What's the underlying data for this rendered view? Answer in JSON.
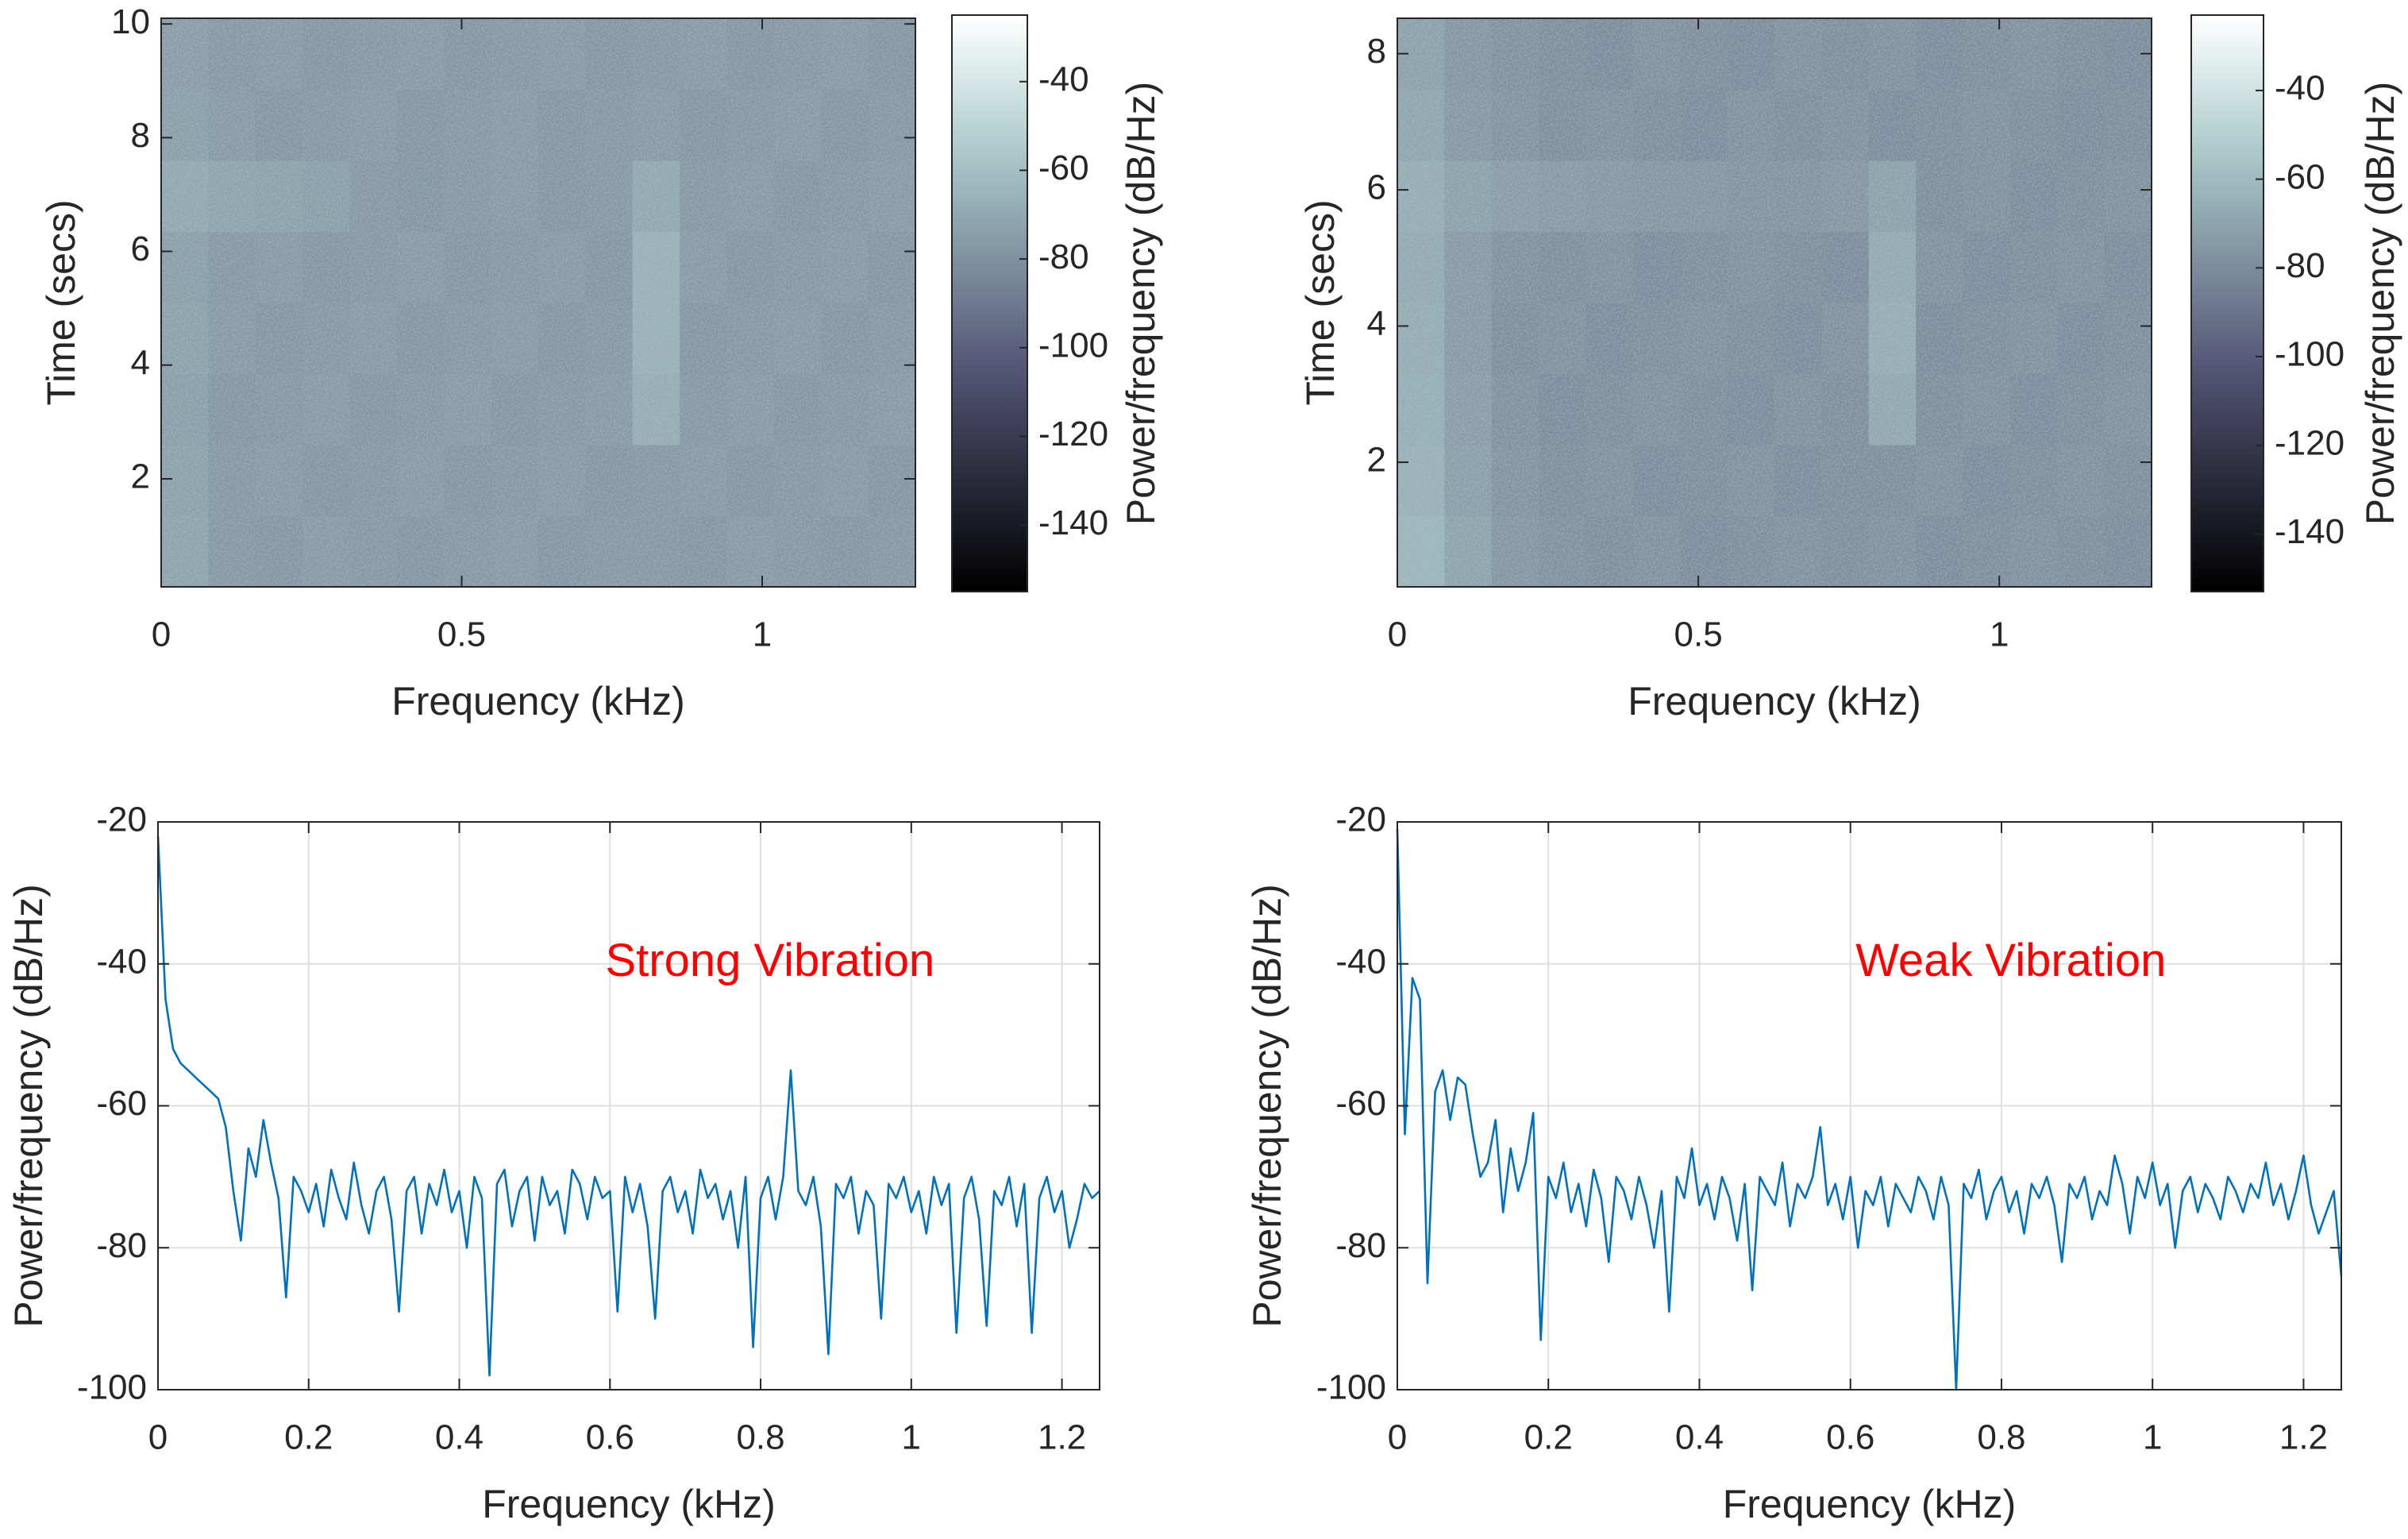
{
  "chart_data": [
    {
      "type": "heatmap",
      "xlabel": "Frequency (kHz)",
      "ylabel": "Time (secs)",
      "colorbar_label": "Power/frequency (dB/Hz)",
      "xlim": [
        0,
        1.255
      ],
      "xticks": [
        0,
        0.5,
        1
      ],
      "ylim": [
        0.1,
        10.1
      ],
      "yticks": [
        2,
        4,
        6,
        8,
        10
      ],
      "clim": [
        -155,
        -25
      ],
      "cticks": [
        -140,
        -120,
        -100,
        -80,
        -60,
        -40
      ],
      "colormap": "bone",
      "z": [
        [
          -72,
          -77,
          -78,
          -76,
          -77,
          -78,
          -77,
          -76,
          -78,
          -77,
          -77,
          -78,
          -76,
          -77,
          -78,
          -77
        ],
        [
          -73,
          -77,
          -76,
          -78,
          -77,
          -76,
          -78,
          -77,
          -76,
          -78,
          -77,
          -76,
          -78,
          -77,
          -76,
          -78
        ],
        [
          -74,
          -78,
          -77,
          -76,
          -78,
          -77,
          -76,
          -78,
          -77,
          -76,
          -68,
          -77,
          -76,
          -78,
          -77,
          -76
        ],
        [
          -73,
          -76,
          -78,
          -77,
          -76,
          -78,
          -77,
          -76,
          -78,
          -77,
          -66,
          -78,
          -77,
          -76,
          -78,
          -77
        ],
        [
          -74,
          -77,
          -76,
          -78,
          -77,
          -76,
          -78,
          -77,
          -76,
          -78,
          -66,
          -76,
          -78,
          -77,
          -76,
          -78
        ],
        [
          -70,
          -72,
          -73,
          -74,
          -77,
          -78,
          -77,
          -76,
          -78,
          -77,
          -70,
          -77,
          -76,
          -78,
          -77,
          -76
        ],
        [
          -74,
          -76,
          -78,
          -77,
          -76,
          -78,
          -77,
          -76,
          -78,
          -77,
          -76,
          -78,
          -77,
          -76,
          -78,
          -77
        ],
        [
          -75,
          -77,
          -76,
          -78,
          -77,
          -76,
          -78,
          -77,
          -76,
          -78,
          -77,
          -76,
          -78,
          -77,
          -76,
          -78
        ]
      ]
    },
    {
      "type": "heatmap",
      "xlabel": "Frequency (kHz)",
      "ylabel": "Time (secs)",
      "colorbar_label": "Power/frequency (dB/Hz)",
      "xlim": [
        0,
        1.253
      ],
      "xticks": [
        0,
        0.5,
        1
      ],
      "ylim": [
        0.17,
        8.52
      ],
      "yticks": [
        2,
        4,
        6,
        8
      ],
      "clim": [
        -153,
        -23
      ],
      "cticks": [
        -140,
        -120,
        -100,
        -80,
        -60,
        -40
      ],
      "colormap": "bone",
      "z": [
        [
          -62,
          -70,
          -76,
          -78,
          -79,
          -78,
          -80,
          -79,
          -78,
          -79,
          -78,
          -80,
          -79,
          -78,
          -79,
          -80
        ],
        [
          -64,
          -72,
          -77,
          -79,
          -78,
          -80,
          -79,
          -78,
          -80,
          -79,
          -79,
          -78,
          -80,
          -79,
          -78,
          -79
        ],
        [
          -65,
          -73,
          -78,
          -80,
          -79,
          -78,
          -79,
          -80,
          -78,
          -79,
          -68,
          -79,
          -78,
          -80,
          -79,
          -78
        ],
        [
          -66,
          -74,
          -79,
          -78,
          -80,
          -79,
          -78,
          -79,
          -80,
          -78,
          -66,
          -80,
          -79,
          -78,
          -80,
          -79
        ],
        [
          -67,
          -74,
          -78,
          -79,
          -78,
          -80,
          -79,
          -78,
          -79,
          -80,
          -67,
          -78,
          -80,
          -79,
          -78,
          -80
        ],
        [
          -66,
          -71,
          -73,
          -74,
          -75,
          -76,
          -76,
          -77,
          -77,
          -76,
          -71,
          -79,
          -78,
          -80,
          -79,
          -78
        ],
        [
          -69,
          -75,
          -77,
          -79,
          -78,
          -79,
          -80,
          -78,
          -79,
          -78,
          -80,
          -79,
          -78,
          -79,
          -80,
          -79
        ],
        [
          -71,
          -76,
          -78,
          -79,
          -80,
          -78,
          -79,
          -80,
          -78,
          -79,
          -78,
          -80,
          -79,
          -78,
          -79,
          -80
        ]
      ]
    },
    {
      "type": "line",
      "xlabel": "Frequency (kHz)",
      "ylabel": "Power/frequency (dB/Hz)",
      "annotation": "Strong Vibration",
      "annotation_color": "#ff0000",
      "xlim": [
        0,
        1.25
      ],
      "xticks": [
        0,
        0.2,
        0.4,
        0.6,
        0.8,
        1,
        1.2
      ],
      "ylim": [
        -100,
        -20
      ],
      "yticks": [
        -100,
        -80,
        -60,
        -40,
        -20
      ],
      "grid": true,
      "color": "#0072bd",
      "x": [
        0,
        0.01,
        0.02,
        0.03,
        0.04,
        0.05,
        0.06,
        0.07,
        0.08,
        0.09,
        0.1,
        0.11,
        0.12,
        0.13,
        0.14,
        0.15,
        0.16,
        0.17,
        0.18,
        0.19,
        0.2,
        0.21,
        0.22,
        0.23,
        0.24,
        0.25,
        0.26,
        0.27,
        0.28,
        0.29,
        0.3,
        0.31,
        0.32,
        0.33,
        0.34,
        0.35,
        0.36,
        0.37,
        0.38,
        0.39,
        0.4,
        0.41,
        0.42,
        0.43,
        0.44,
        0.45,
        0.46,
        0.47,
        0.48,
        0.49,
        0.5,
        0.51,
        0.52,
        0.53,
        0.54,
        0.55,
        0.56,
        0.57,
        0.58,
        0.59,
        0.6,
        0.61,
        0.62,
        0.63,
        0.64,
        0.65,
        0.66,
        0.67,
        0.68,
        0.69,
        0.7,
        0.71,
        0.72,
        0.73,
        0.74,
        0.75,
        0.76,
        0.77,
        0.78,
        0.79,
        0.8,
        0.81,
        0.82,
        0.83,
        0.84,
        0.85,
        0.86,
        0.87,
        0.88,
        0.89,
        0.9,
        0.91,
        0.92,
        0.93,
        0.94,
        0.95,
        0.96,
        0.97,
        0.98,
        0.99,
        1,
        1.01,
        1.02,
        1.03,
        1.04,
        1.05,
        1.06,
        1.07,
        1.08,
        1.09,
        1.1,
        1.11,
        1.12,
        1.13,
        1.14,
        1.15,
        1.16,
        1.17,
        1.18,
        1.19,
        1.2,
        1.21,
        1.22,
        1.23,
        1.24,
        1.25
      ],
      "values": [
        -22,
        -45,
        -52,
        -54,
        -55,
        -56,
        -57,
        -58,
        -59,
        -63,
        -72,
        -79,
        -66,
        -70,
        -62,
        -68,
        -73,
        -87,
        -70,
        -72,
        -75,
        -71,
        -77,
        -69,
        -73,
        -76,
        -68,
        -74,
        -78,
        -72,
        -70,
        -76,
        -89,
        -72,
        -70,
        -78,
        -71,
        -74,
        -69,
        -75,
        -72,
        -80,
        -70,
        -73,
        -98,
        -71,
        -69,
        -77,
        -72,
        -70,
        -79,
        -70,
        -74,
        -72,
        -78,
        -69,
        -71,
        -76,
        -70,
        -73,
        -72,
        -89,
        -70,
        -75,
        -71,
        -77,
        -90,
        -72,
        -70,
        -75,
        -72,
        -78,
        -69,
        -73,
        -71,
        -76,
        -72,
        -80,
        -70,
        -94,
        -73,
        -70,
        -76,
        -70,
        -55,
        -72,
        -74,
        -70,
        -77,
        -95,
        -71,
        -73,
        -70,
        -78,
        -72,
        -74,
        -90,
        -71,
        -73,
        -70,
        -75,
        -72,
        -78,
        -70,
        -74,
        -71,
        -92,
        -73,
        -70,
        -76,
        -91,
        -72,
        -74,
        -70,
        -77,
        -71,
        -92,
        -73,
        -70,
        -75,
        -72,
        -80,
        -76,
        -71,
        -73,
        -72
      ]
    },
    {
      "type": "line",
      "xlabel": "Frequency (kHz)",
      "ylabel": "Power/frequency (dB/Hz)",
      "annotation": "Weak Vibration",
      "annotation_color": "#ff0000",
      "xlim": [
        0,
        1.25
      ],
      "xticks": [
        0,
        0.2,
        0.4,
        0.6,
        0.8,
        1,
        1.2
      ],
      "ylim": [
        -100,
        -20
      ],
      "yticks": [
        -100,
        -80,
        -60,
        -40,
        -20
      ],
      "grid": true,
      "color": "#0072bd",
      "x": [
        0,
        0.01,
        0.02,
        0.03,
        0.04,
        0.05,
        0.06,
        0.07,
        0.08,
        0.09,
        0.1,
        0.11,
        0.12,
        0.13,
        0.14,
        0.15,
        0.16,
        0.17,
        0.18,
        0.19,
        0.2,
        0.21,
        0.22,
        0.23,
        0.24,
        0.25,
        0.26,
        0.27,
        0.28,
        0.29,
        0.3,
        0.31,
        0.32,
        0.33,
        0.34,
        0.35,
        0.36,
        0.37,
        0.38,
        0.39,
        0.4,
        0.41,
        0.42,
        0.43,
        0.44,
        0.45,
        0.46,
        0.47,
        0.48,
        0.49,
        0.5,
        0.51,
        0.52,
        0.53,
        0.54,
        0.55,
        0.56,
        0.57,
        0.58,
        0.59,
        0.6,
        0.61,
        0.62,
        0.63,
        0.64,
        0.65,
        0.66,
        0.67,
        0.68,
        0.69,
        0.7,
        0.71,
        0.72,
        0.73,
        0.74,
        0.75,
        0.76,
        0.77,
        0.78,
        0.79,
        0.8,
        0.81,
        0.82,
        0.83,
        0.84,
        0.85,
        0.86,
        0.87,
        0.88,
        0.89,
        0.9,
        0.91,
        0.92,
        0.93,
        0.94,
        0.95,
        0.96,
        0.97,
        0.98,
        0.99,
        1,
        1.01,
        1.02,
        1.03,
        1.04,
        1.05,
        1.06,
        1.07,
        1.08,
        1.09,
        1.1,
        1.11,
        1.12,
        1.13,
        1.14,
        1.15,
        1.16,
        1.17,
        1.18,
        1.19,
        1.2,
        1.21,
        1.22,
        1.23,
        1.24,
        1.25
      ],
      "values": [
        -21,
        -64,
        -42,
        -45,
        -85,
        -58,
        -55,
        -62,
        -56,
        -57,
        -64,
        -70,
        -68,
        -62,
        -75,
        -66,
        -72,
        -68,
        -61,
        -93,
        -70,
        -73,
        -68,
        -75,
        -71,
        -77,
        -69,
        -73,
        -82,
        -70,
        -72,
        -76,
        -70,
        -74,
        -80,
        -72,
        -89,
        -70,
        -73,
        -66,
        -74,
        -71,
        -76,
        -70,
        -73,
        -79,
        -71,
        -86,
        -70,
        -72,
        -74,
        -68,
        -77,
        -71,
        -73,
        -70,
        -63,
        -74,
        -71,
        -76,
        -70,
        -80,
        -72,
        -74,
        -70,
        -77,
        -71,
        -73,
        -75,
        -70,
        -72,
        -76,
        -70,
        -74,
        -100,
        -71,
        -73,
        -69,
        -76,
        -72,
        -70,
        -75,
        -72,
        -78,
        -71,
        -73,
        -70,
        -74,
        -82,
        -71,
        -73,
        -70,
        -76,
        -72,
        -74,
        -67,
        -71,
        -78,
        -70,
        -73,
        -68,
        -74,
        -71,
        -80,
        -72,
        -70,
        -75,
        -71,
        -73,
        -76,
        -70,
        -72,
        -75,
        -71,
        -73,
        -68,
        -74,
        -71,
        -76,
        -72,
        -67,
        -74,
        -78,
        -75,
        -72,
        -84
      ]
    }
  ]
}
